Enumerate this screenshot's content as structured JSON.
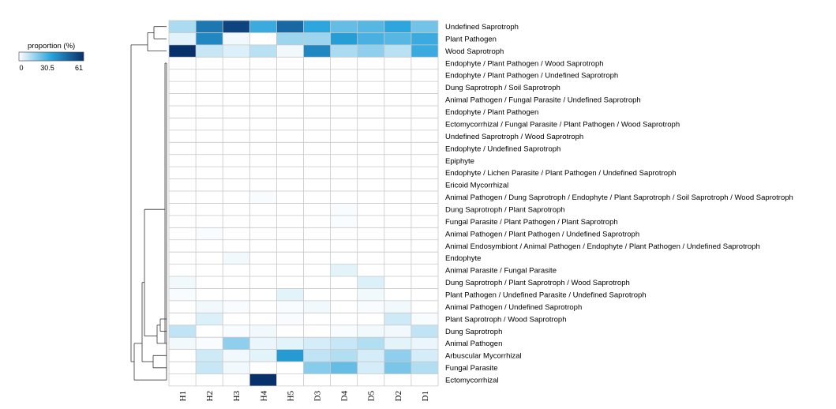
{
  "chart_data": {
    "type": "heatmap",
    "columns": [
      "H1",
      "H2",
      "H3",
      "H4",
      "H5",
      "D3",
      "D4",
      "D5",
      "D2",
      "D1"
    ],
    "rows": [
      "Undefined Saprotroph",
      "Plant Pathogen",
      "Wood Saprotroph",
      "Endophyte / Plant Pathogen / Wood Saprotroph",
      "Endophyte / Plant Pathogen / Undefined Saprotroph",
      "Dung Saprotroph / Soil Saprotroph",
      "Animal Pathogen / Fungal Parasite / Undefined Saprotroph",
      "Endophyte / Plant Pathogen",
      "Ectomycorrhizal / Fungal Parasite / Plant Pathogen / Wood Saprotroph",
      "Undefined Saprotroph / Wood Saprotroph",
      "Endophyte / Undefined Saprotroph",
      "Epiphyte",
      "Endophyte / Lichen Parasite / Plant Pathogen / Undefined Saprotroph",
      "Ericoid Mycorrhizal",
      "Animal Pathogen / Dung Saprotroph / Endophyte / Plant Saprotroph / Soil Saprotroph / Wood Saprotroph",
      "Dung Saprotroph / Plant Saprotroph",
      "Fungal Parasite / Plant Pathogen / Plant Saprotroph",
      "Animal Pathogen / Plant Pathogen / Undefined Saprotroph",
      "Animal Endosymbiont / Animal Pathogen / Endophyte / Plant Pathogen / Undefined Saprotroph",
      "Endophyte",
      "Animal Parasite / Fungal Parasite",
      "Dung Saprotroph / Plant Saprotroph / Wood Saprotroph",
      "Plant Pathogen / Undefined Parasite / Undefined Saprotroph",
      "Animal Pathogen / Undefined Saprotroph",
      "Plant Saprotroph / Wood Saprotroph",
      "Dung Saprotroph",
      "Animal Pathogen",
      "Arbuscular Mycorrhizal",
      "Fungal Parasite",
      "Ectomycorrhizal"
    ],
    "values": [
      [
        12,
        42,
        56,
        28,
        46,
        30,
        22,
        24,
        30,
        20
      ],
      [
        4,
        38,
        2,
        0,
        14,
        14,
        32,
        26,
        24,
        28
      ],
      [
        61,
        8,
        5,
        10,
        2,
        38,
        12,
        16,
        10,
        28
      ],
      [
        0,
        0,
        0,
        0,
        0,
        0,
        0,
        0,
        0,
        0
      ],
      [
        0,
        0,
        0,
        0,
        0,
        0,
        0,
        0,
        0,
        0
      ],
      [
        0,
        0,
        0,
        0,
        0,
        0,
        0,
        0,
        0,
        0
      ],
      [
        0,
        0,
        0,
        0,
        0,
        0,
        0,
        0,
        0,
        0
      ],
      [
        0,
        0,
        0,
        0,
        0,
        0,
        0,
        0,
        0,
        0
      ],
      [
        0,
        0,
        0,
        0,
        0,
        0,
        0,
        0,
        0,
        0
      ],
      [
        0,
        0,
        0,
        0,
        0,
        0,
        0,
        0,
        0,
        0
      ],
      [
        0,
        0,
        0,
        0,
        0,
        0,
        0,
        0,
        0,
        0
      ],
      [
        0,
        0,
        0,
        0,
        0,
        0,
        0,
        0,
        0,
        0
      ],
      [
        0,
        0,
        0,
        0,
        0,
        0,
        0,
        0,
        0,
        0
      ],
      [
        0,
        0,
        0,
        0,
        0,
        0,
        0,
        0,
        0,
        0
      ],
      [
        0,
        0,
        0,
        1,
        0,
        0,
        0,
        0,
        0,
        0
      ],
      [
        0,
        0,
        0,
        0,
        0,
        0,
        1,
        0,
        0,
        0
      ],
      [
        0,
        0,
        0,
        0,
        0,
        0,
        1,
        0,
        0,
        0
      ],
      [
        0,
        1,
        0,
        0,
        0,
        0,
        0,
        0,
        0,
        0
      ],
      [
        0,
        0,
        0,
        0,
        0,
        0,
        0,
        0,
        0,
        0
      ],
      [
        0,
        0,
        2,
        0,
        0,
        0,
        0,
        0,
        0,
        0
      ],
      [
        0,
        0,
        0,
        0,
        0,
        0,
        4,
        0,
        0,
        0
      ],
      [
        2,
        0,
        0,
        0,
        0,
        0,
        0,
        5,
        0,
        0
      ],
      [
        1,
        0,
        0,
        0,
        4,
        0,
        0,
        2,
        0,
        0
      ],
      [
        0,
        2,
        1,
        0,
        1,
        2,
        0,
        1,
        2,
        0
      ],
      [
        0,
        5,
        0,
        0,
        1,
        0,
        0,
        0,
        7,
        1
      ],
      [
        9,
        0,
        1,
        2,
        0,
        0,
        1,
        2,
        2,
        9
      ],
      [
        2,
        1,
        16,
        3,
        4,
        6,
        8,
        11,
        4,
        3
      ],
      [
        0,
        7,
        2,
        4,
        33,
        9,
        11,
        6,
        16,
        6
      ],
      [
        0,
        8,
        2,
        0,
        0,
        17,
        22,
        6,
        19,
        11
      ],
      [
        0,
        0,
        0,
        61,
        0,
        0,
        0,
        0,
        0,
        0
      ]
    ],
    "colorscale": {
      "min": 0,
      "mid": 30.5,
      "max": 61,
      "colors": [
        "#ffffff",
        "#29a3dc",
        "#08306b"
      ]
    },
    "legend": {
      "title": "proportion (%)",
      "ticks": [
        "0",
        "30.5",
        "61"
      ],
      "placement": "top-left"
    },
    "column_dendrogram": false,
    "row_dendrogram": true
  }
}
